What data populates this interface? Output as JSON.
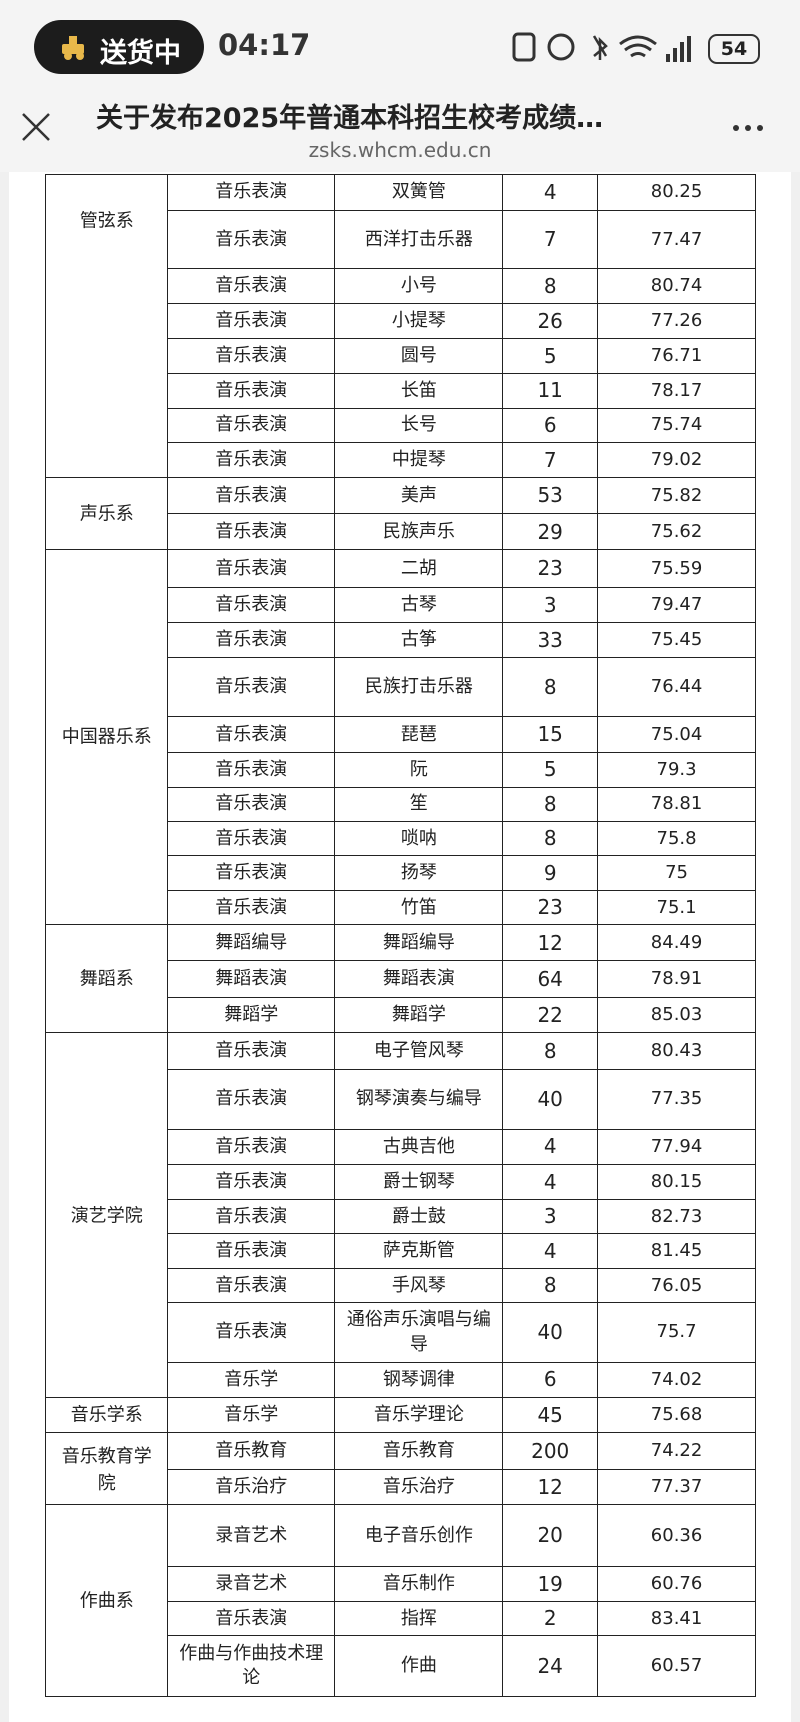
{
  "status_bar": {
    "delivery": "送货中",
    "time": "04:17",
    "battery": "54"
  },
  "header": {
    "title": "关于发布2025年普通本科招生校考成绩…",
    "url": "zsks.whcm.edu.cn"
  },
  "table": {
    "groups": [
      {
        "department": "管弦系",
        "rows": [
          [
            "音乐表演",
            "双簧管",
            "4",
            "80.25"
          ],
          [
            "音乐表演",
            "西洋打击乐器",
            "7",
            "77.47"
          ],
          [
            "音乐表演",
            "小号",
            "8",
            "80.74"
          ],
          [
            "音乐表演",
            "小提琴",
            "26",
            "77.26"
          ],
          [
            "音乐表演",
            "圆号",
            "5",
            "76.71"
          ],
          [
            "音乐表演",
            "长笛",
            "11",
            "78.17"
          ],
          [
            "音乐表演",
            "长号",
            "6",
            "75.74"
          ],
          [
            "音乐表演",
            "中提琴",
            "7",
            "79.02"
          ]
        ]
      },
      {
        "department": "声乐系",
        "rows": [
          [
            "音乐表演",
            "美声",
            "53",
            "75.82"
          ],
          [
            "音乐表演",
            "民族声乐",
            "29",
            "75.62"
          ]
        ]
      },
      {
        "department": "中国器乐系",
        "rows": [
          [
            "音乐表演",
            "二胡",
            "23",
            "75.59"
          ],
          [
            "音乐表演",
            "古琴",
            "3",
            "79.47"
          ],
          [
            "音乐表演",
            "古筝",
            "33",
            "75.45"
          ],
          [
            "音乐表演",
            "民族打击乐器",
            "8",
            "76.44"
          ],
          [
            "音乐表演",
            "琵琶",
            "15",
            "75.04"
          ],
          [
            "音乐表演",
            "阮",
            "5",
            "79.3"
          ],
          [
            "音乐表演",
            "笙",
            "8",
            "78.81"
          ],
          [
            "音乐表演",
            "唢呐",
            "8",
            "75.8"
          ],
          [
            "音乐表演",
            "扬琴",
            "9",
            "75"
          ],
          [
            "音乐表演",
            "竹笛",
            "23",
            "75.1"
          ]
        ]
      },
      {
        "department": "舞蹈系",
        "rows": [
          [
            "舞蹈编导",
            "舞蹈编导",
            "12",
            "84.49"
          ],
          [
            "舞蹈表演",
            "舞蹈表演",
            "64",
            "78.91"
          ],
          [
            "舞蹈学",
            "舞蹈学",
            "22",
            "85.03"
          ]
        ]
      },
      {
        "department": "演艺学院",
        "rows": [
          [
            "音乐表演",
            "电子管风琴",
            "8",
            "80.43"
          ],
          [
            "音乐表演",
            "钢琴演奏与编导",
            "40",
            "77.35"
          ],
          [
            "音乐表演",
            "古典吉他",
            "4",
            "77.94"
          ],
          [
            "音乐表演",
            "爵士钢琴",
            "4",
            "80.15"
          ],
          [
            "音乐表演",
            "爵士鼓",
            "3",
            "82.73"
          ],
          [
            "音乐表演",
            "萨克斯管",
            "4",
            "81.45"
          ],
          [
            "音乐表演",
            "手风琴",
            "8",
            "76.05"
          ],
          [
            "音乐表演",
            "通俗声乐演唱与编导",
            "40",
            "75.7"
          ],
          [
            "音乐学",
            "钢琴调律",
            "6",
            "74.02"
          ]
        ]
      },
      {
        "department": "音乐学系",
        "rows": [
          [
            "音乐学",
            "音乐学理论",
            "45",
            "75.68"
          ]
        ]
      },
      {
        "department": "音乐教育学院",
        "rows": [
          [
            "音乐教育",
            "音乐教育",
            "200",
            "74.22"
          ],
          [
            "音乐治疗",
            "音乐治疗",
            "12",
            "77.37"
          ]
        ]
      },
      {
        "department": "作曲系",
        "rows": [
          [
            "录音艺术",
            "电子音乐创作",
            "20",
            "60.36"
          ],
          [
            "录音艺术",
            "音乐制作",
            "19",
            "60.76"
          ],
          [
            "音乐表演",
            "指挥",
            "2",
            "83.41"
          ],
          [
            "作曲与作曲技术理论",
            "作曲",
            "24",
            "60.57"
          ]
        ]
      }
    ]
  }
}
